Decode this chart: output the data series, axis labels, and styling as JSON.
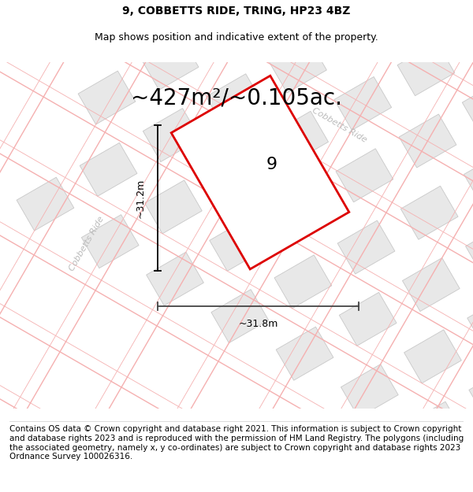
{
  "title_line1": "9, COBBETTS RIDE, TRING, HP23 4BZ",
  "title_line2": "Map shows position and indicative extent of the property.",
  "area_text": "~427m²/~0.105ac.",
  "dim_width": "~31.8m",
  "dim_height": "~31.2m",
  "plot_label": "9",
  "road_label_top": "Cobbetts Ride",
  "road_label_left": "Cobbetts Ride",
  "footer_text": "Contains OS data © Crown copyright and database right 2021. This information is subject to Crown copyright and database rights 2023 and is reproduced with the permission of HM Land Registry. The polygons (including the associated geometry, namely x, y co-ordinates) are subject to Crown copyright and database rights 2023 Ordnance Survey 100026316.",
  "plot_edge": "#dd0000",
  "neighbor_fill": "#e8e8e8",
  "neighbor_edge": "#c8c8c8",
  "road_line_color": "#f5b0b0",
  "road_label_color": "#bbbbbb",
  "title_fontsize": 10,
  "subtitle_fontsize": 9,
  "area_fontsize": 20,
  "label_fontsize": 16,
  "footer_fontsize": 7.5
}
